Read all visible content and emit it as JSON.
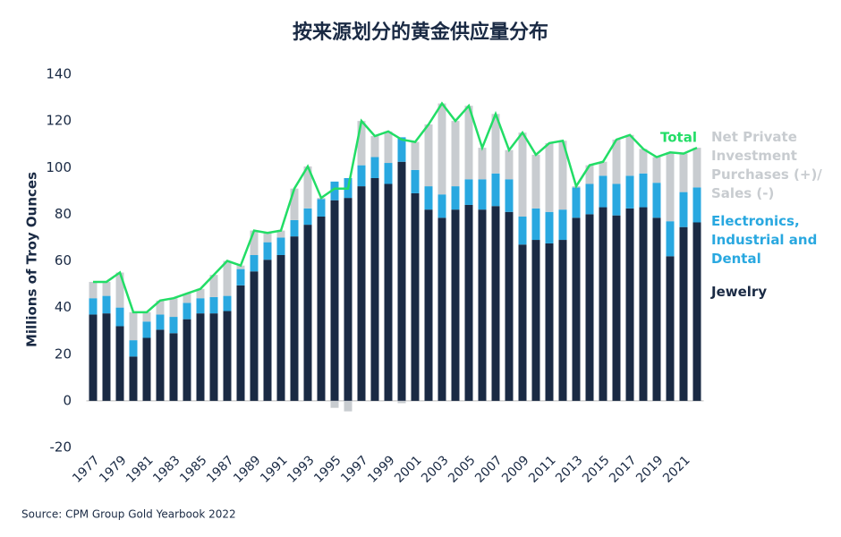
{
  "chart_data": {
    "type": "bar",
    "title": "按来源划分的黄金供应量分布",
    "y_label": "Millions of Troy Ounces",
    "source": "Source: CPM Group Gold Yearbook 2022",
    "categories": [
      "1977",
      null,
      "1979",
      null,
      "1981",
      null,
      "1983",
      null,
      "1985",
      null,
      "1987",
      null,
      "1989",
      null,
      "1991",
      null,
      "1993",
      null,
      "1995",
      null,
      "1997",
      null,
      "1999",
      null,
      "2001",
      null,
      "2003",
      null,
      "2005",
      null,
      "2007",
      null,
      "2009",
      null,
      "2011",
      null,
      "2013",
      null,
      "2015",
      null,
      "2017",
      null,
      "2019",
      null,
      "2021",
      null
    ],
    "ylim": [
      -20,
      140
    ],
    "yticks": [
      -20,
      0,
      20,
      40,
      60,
      80,
      100,
      120,
      140
    ],
    "grid": false,
    "series": [
      {
        "name": "Jewelry",
        "type": "bar",
        "color": "#1a2a44",
        "values": [
          37,
          37.5,
          32,
          19,
          27,
          30.5,
          29,
          35,
          37.5,
          37.5,
          38.5,
          49.5,
          55.5,
          60.5,
          62.5,
          70.5,
          75.5,
          79,
          86,
          87,
          92,
          95.5,
          93,
          102.5,
          89,
          82,
          78.5,
          82,
          84,
          82,
          83.5,
          81,
          67,
          69,
          67.5,
          69,
          78.5,
          80,
          83,
          79.5,
          82.5,
          83,
          78.5,
          62,
          74.5,
          76.5
        ]
      },
      {
        "name": "Electronics, Industrial and Dental",
        "type": "bar",
        "color": "#29a8e0",
        "values": [
          7,
          7.5,
          8,
          7,
          7,
          6.5,
          7,
          7,
          6.5,
          7,
          6.5,
          7,
          7,
          7.5,
          7.5,
          7,
          7,
          7.5,
          8,
          8.5,
          9,
          9,
          9,
          10.5,
          10,
          10,
          10,
          10,
          11,
          13,
          14,
          14,
          12,
          13.5,
          13.5,
          13,
          13,
          13,
          13.5,
          13.5,
          14,
          14.5,
          15,
          15,
          15,
          15
        ]
      },
      {
        "name": "Net Private Investment Purchases (+)/ Sales (-)",
        "type": "bar",
        "color": "#c8ccd0",
        "values": [
          7,
          6,
          15,
          12,
          4,
          6,
          8,
          4,
          4,
          9.5,
          15,
          1.5,
          10.5,
          4,
          3,
          13.5,
          18,
          0.5,
          -3,
          -4.5,
          19,
          9,
          13.5,
          -1,
          12,
          26.5,
          39,
          28,
          31.5,
          13.5,
          25.5,
          12.5,
          36,
          23,
          29.5,
          29.5,
          0.5,
          8,
          6,
          19,
          17.5,
          10.5,
          11,
          29.5,
          16.5,
          17
        ]
      },
      {
        "name": "Total",
        "type": "line",
        "color": "#22dd66",
        "values": [
          51,
          51,
          55,
          38,
          38,
          43,
          44,
          46,
          48,
          54,
          60,
          58,
          73,
          72,
          73,
          91,
          100.5,
          87,
          91,
          91,
          120,
          113.5,
          115.5,
          112,
          111,
          118.5,
          127.5,
          120,
          126.5,
          108.5,
          123,
          107.5,
          115,
          105.5,
          110.5,
          111.5,
          92,
          101,
          102.5,
          112,
          114,
          108,
          104.5,
          106.5,
          106,
          108.5
        ]
      }
    ]
  }
}
